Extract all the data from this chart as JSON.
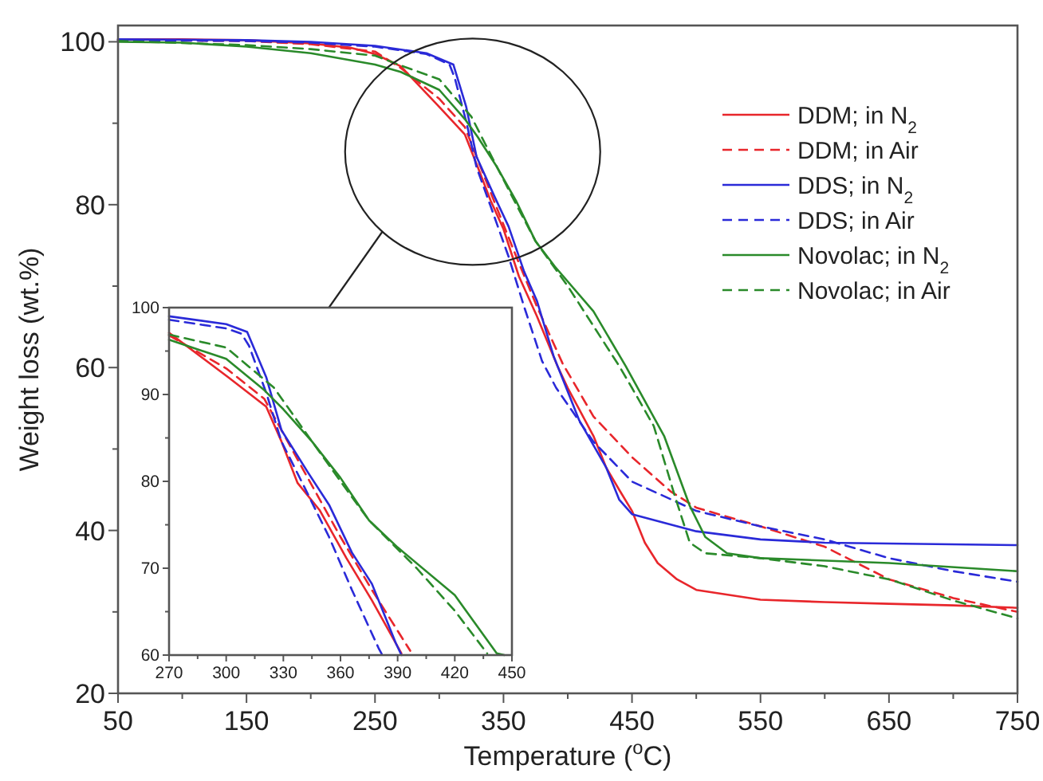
{
  "chart_data": [
    {
      "type": "line",
      "xlabel": "Temperature ($^{o}$C)",
      "ylabel": "Weight loss (wt.%)",
      "xlim": [
        50,
        750
      ],
      "ylim": [
        20,
        102
      ],
      "xticks": [
        50,
        {
          "value": 100,
          "label": null
        },
        150,
        {
          "value": 200,
          "label": null
        },
        250,
        {
          "value": 300,
          "label": null
        },
        350,
        {
          "value": 400,
          "label": null
        },
        450,
        {
          "value": 500,
          "label": null
        },
        550,
        {
          "value": 600,
          "label": null
        },
        650,
        {
          "value": 700,
          "label": null
        },
        750
      ],
      "yticks": [
        20,
        {
          "value": 30,
          "label": null
        },
        40,
        {
          "value": 50,
          "label": null
        },
        60,
        {
          "value": 70,
          "label": null
        },
        80,
        {
          "value": 90,
          "label": null
        },
        100
      ],
      "legend": "top right",
      "grid": false,
      "series": [
        {
          "name": "DDM; in N$_{2}$",
          "color": "#e8262b",
          "line_style": "solid",
          "x": [
            50,
            100,
            150,
            200,
            230,
            250,
            270,
            300,
            320,
            330,
            340,
            350,
            362,
            376,
            392,
            400,
            420,
            430,
            440,
            450,
            460,
            470,
            485,
            500,
            550,
            600,
            650,
            700,
            750
          ],
          "values": [
            100.3,
            100.3,
            100.2,
            99.8,
            99.3,
            98.5,
            97,
            92,
            88.6,
            84.6,
            80.5,
            77,
            71.2,
            66.3,
            60.2,
            57.5,
            51.6,
            47.7,
            45,
            42.4,
            38.5,
            36,
            34,
            32.7,
            31.5,
            31.2,
            31,
            30.8,
            30.5
          ]
        },
        {
          "name": "DDM; in Air",
          "color": "#e8262b",
          "line_style": "dashed",
          "x": [
            50,
            150,
            200,
            250,
            270,
            300,
            320,
            330,
            340,
            360,
            376,
            396,
            420,
            450,
            480,
            500,
            550,
            600,
            650,
            700,
            750
          ],
          "values": [
            100.2,
            100.1,
            99.7,
            98.8,
            96.8,
            93,
            89.5,
            85.5,
            81.5,
            73.6,
            67.5,
            60.5,
            54,
            49,
            44.8,
            42.8,
            40.5,
            38,
            34,
            31.7,
            30
          ]
        },
        {
          "name": "DDS; in N$_{2}$",
          "color": "#2a2ad8",
          "line_style": "solid",
          "x": [
            50,
            150,
            200,
            250,
            290,
            311,
            321,
            329,
            343,
            354,
            366,
            376,
            389,
            409,
            430,
            440,
            450,
            500,
            550,
            600,
            750
          ],
          "values": [
            100.3,
            100.2,
            100,
            99.5,
            98.6,
            97.2,
            92,
            85.9,
            81,
            77.3,
            71.8,
            68.2,
            61.4,
            53.5,
            47.7,
            43.8,
            42,
            39.9,
            38.9,
            38.5,
            38.2
          ]
        },
        {
          "name": "DDS; in Air",
          "color": "#2a2ad8",
          "line_style": "dashed",
          "x": [
            50,
            150,
            200,
            250,
            290,
            308,
            312,
            321,
            329,
            340,
            354,
            366,
            380,
            391,
            420,
            450,
            500,
            550,
            600,
            650,
            700,
            750
          ],
          "values": [
            100.2,
            100.1,
            99.9,
            99.4,
            98.5,
            97.2,
            95.6,
            90.2,
            84.6,
            79.8,
            73.6,
            67.5,
            60.8,
            57.5,
            50.9,
            46,
            42.4,
            40.5,
            38.9,
            36.6,
            35,
            33.7
          ]
        },
        {
          "name": "Novolac; in N$_{2}$",
          "color": "#2a8a2a",
          "line_style": "solid",
          "x": [
            50,
            100,
            150,
            200,
            250,
            270,
            300,
            320,
            330,
            345,
            360,
            375,
            390,
            420,
            445,
            475,
            495,
            507,
            524,
            550,
            650,
            750
          ],
          "values": [
            100,
            99.9,
            99.4,
            98.6,
            97.2,
            96.3,
            94.1,
            90.5,
            88.3,
            84.6,
            80.4,
            75.5,
            72.4,
            66.9,
            60.2,
            51.6,
            43,
            39.2,
            37.2,
            36.6,
            36,
            35
          ]
        },
        {
          "name": "Novolac; in Air",
          "color": "#2a8a2a",
          "line_style": "dashed",
          "x": [
            50,
            150,
            200,
            250,
            270,
            300,
            325,
            345,
            360,
            375,
            400,
            420,
            440,
            450,
            467,
            483,
            495,
            507,
            550,
            600,
            650,
            700,
            750
          ],
          "values": [
            100.1,
            99.6,
            99.1,
            98.3,
            97.1,
            95.4,
            90.8,
            84.6,
            80,
            75.5,
            70,
            65.1,
            60.2,
            57.5,
            52.8,
            44.4,
            38.5,
            37.2,
            36.6,
            35.6,
            34,
            31.4,
            29.2
          ]
        }
      ]
    },
    {
      "type": "line",
      "xlim": [
        270,
        450
      ],
      "ylim": [
        60,
        100
      ],
      "xticks": [
        270,
        {
          "value": 285,
          "label": null
        },
        300,
        {
          "value": 315,
          "label": null
        },
        330,
        {
          "value": 345,
          "label": null
        },
        360,
        {
          "value": 375,
          "label": null
        },
        390,
        {
          "value": 405,
          "label": null
        },
        420,
        {
          "value": 435,
          "label": null
        },
        450
      ],
      "yticks": [
        60,
        {
          "value": 65,
          "label": null
        },
        70,
        {
          "value": 75,
          "label": null
        },
        80,
        {
          "value": 85,
          "label": null
        },
        90,
        {
          "value": 95,
          "label": null
        },
        100
      ],
      "legend": false,
      "grid": false,
      "series": [
        {
          "color": "#e8262b",
          "line_style": "solid",
          "x": [
            270,
            301,
            321,
            329,
            337.5,
            349,
            363,
            376.5,
            392
          ],
          "values": [
            97.1,
            92,
            88.6,
            84.6,
            79.8,
            76.7,
            71.2,
            66.3,
            60.2
          ]
        },
        {
          "color": "#e8262b",
          "line_style": "dashed",
          "x": [
            270,
            300,
            320,
            330,
            340,
            360,
            376.5,
            396.6
          ],
          "values": [
            96.8,
            93,
            89.5,
            85.5,
            81.5,
            73.6,
            67.5,
            60.5
          ]
        },
        {
          "color": "#2a2ad8",
          "line_style": "solid",
          "x": [
            270,
            300,
            311,
            321,
            329,
            343,
            354,
            366,
            376.5,
            389,
            392
          ],
          "values": [
            99,
            98.1,
            97.2,
            92,
            85.9,
            81,
            77.3,
            71.8,
            68.2,
            61.4,
            60
          ]
        },
        {
          "color": "#2a2ad8",
          "line_style": "dashed",
          "x": [
            270,
            300,
            308,
            312,
            321,
            329,
            340,
            354,
            366,
            380,
            382
          ],
          "values": [
            98.6,
            97.6,
            97,
            95.6,
            90.2,
            84.6,
            79.8,
            73.6,
            67.5,
            60.8,
            60
          ]
        },
        {
          "color": "#2a8a2a",
          "line_style": "solid",
          "x": [
            270,
            300,
            320,
            330,
            345,
            360,
            375,
            390,
            420,
            442,
            446
          ],
          "values": [
            96.3,
            94.1,
            90.5,
            88.3,
            84.6,
            80.4,
            75.5,
            72.4,
            66.9,
            60.2,
            60
          ]
        },
        {
          "color": "#2a8a2a",
          "line_style": "dashed",
          "x": [
            270,
            300,
            325,
            345,
            360,
            375,
            400,
            420,
            437
          ],
          "values": [
            96.9,
            95.4,
            90.8,
            84.6,
            80,
            75.5,
            70,
            65.1,
            60.2
          ]
        }
      ]
    }
  ]
}
